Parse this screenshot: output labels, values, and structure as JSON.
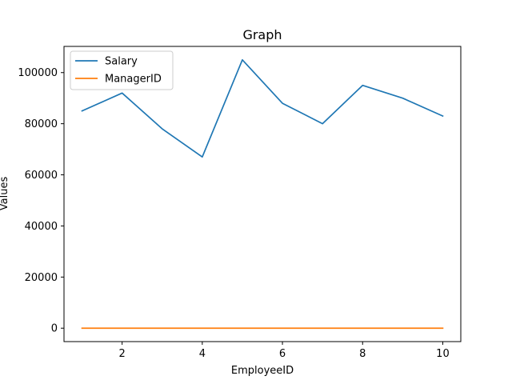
{
  "chart_data": {
    "type": "line",
    "title": "Graph",
    "xlabel": "EmployeeID",
    "ylabel": "Values",
    "x": [
      1,
      2,
      3,
      4,
      5,
      6,
      7,
      8,
      9,
      10
    ],
    "xlim": [
      0.55,
      10.45
    ],
    "ylim": [
      -5250,
      110250
    ],
    "xticks": [
      2,
      4,
      6,
      8,
      10
    ],
    "yticks": [
      0,
      20000,
      40000,
      60000,
      80000,
      100000
    ],
    "grid": false,
    "legend_position": "top-left",
    "series": [
      {
        "name": "Salary",
        "color": "#1f77b4",
        "values": [
          85000,
          92000,
          78000,
          67000,
          105000,
          88000,
          80000,
          95000,
          90000,
          83000
        ]
      },
      {
        "name": "ManagerID",
        "color": "#ff7f0e",
        "values": [
          0,
          0,
          0,
          0,
          0,
          0,
          0,
          0,
          0,
          0
        ]
      }
    ]
  }
}
